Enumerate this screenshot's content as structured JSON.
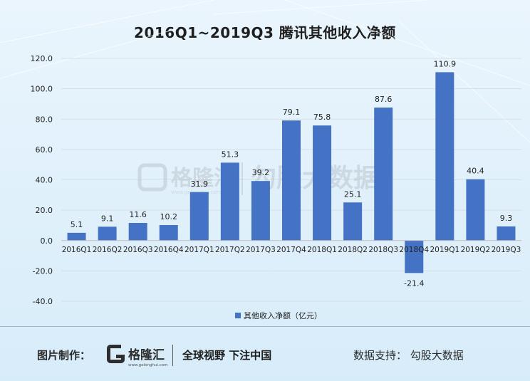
{
  "colors": {
    "bar": "#4472c4",
    "grid": "#d9dee4",
    "axis_text": "#222222",
    "watermark": "#bcc5cf"
  },
  "chart_data": {
    "type": "bar",
    "title": "2016Q1~2019Q3 腾讯其他收入净额",
    "categories": [
      "2016Q1",
      "2016Q2",
      "2016Q3",
      "2016Q4",
      "2017Q1",
      "2017Q2",
      "2017Q3",
      "2017Q4",
      "2018Q1",
      "2018Q2",
      "2018Q3",
      "2018Q4",
      "2019Q1",
      "2019Q2",
      "2019Q3"
    ],
    "series": [
      {
        "name": "其他收入净额（亿元）",
        "values": [
          5.1,
          9.1,
          11.6,
          10.2,
          31.9,
          51.3,
          39.2,
          79.1,
          75.8,
          25.1,
          87.6,
          -21.4,
          110.9,
          40.4,
          9.3
        ]
      }
    ],
    "data_labels": [
      "5.1",
      "9.1",
      "11.6",
      "10.2",
      "31.9",
      "51.3",
      "39.2",
      "79.1",
      "75.8",
      "25.1",
      "87.6",
      "-21.4",
      "110.9",
      "40.4",
      "9.3"
    ],
    "y_ticks": [
      -40,
      -20,
      0,
      20,
      40,
      60,
      80,
      100,
      120
    ],
    "y_tick_labels": [
      "-40.0",
      "-20.0",
      "0.0",
      "20.0",
      "40.0",
      "60.0",
      "80.0",
      "100.0",
      "120.0"
    ],
    "ylim": [
      -40,
      120
    ],
    "xlabel": "",
    "ylabel": "",
    "legend_position": "bottom",
    "grid": true
  },
  "watermark": {
    "brand": "格隆汇",
    "brand_url": "www.gelonghui.com",
    "partner": "勾股大数据"
  },
  "footer": {
    "credit_label": "图片制作：",
    "brand_name": "格隆汇",
    "brand_url": "www.gelonghui.com",
    "slogan": "全球视野 下注中国",
    "support": "数据支持： 勾股大数据"
  }
}
